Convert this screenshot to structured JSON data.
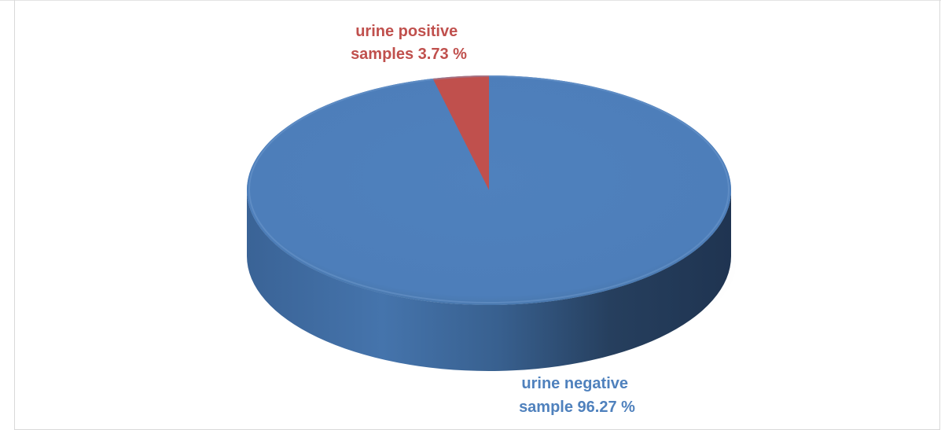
{
  "chart_data": {
    "type": "pie",
    "title": "",
    "categories": [
      "urine positive samples",
      "urine negative sample"
    ],
    "values": [
      3.73,
      96.27
    ],
    "unit": "%",
    "legend": "none",
    "style": "3d",
    "colors": [
      "#C0504D",
      "#4F81BD"
    ],
    "data_labels": [
      {
        "line1": "urine positive",
        "line2": "samples 3.73 %"
      },
      {
        "line1": "urine negative",
        "line2": "sample 96.27 %"
      }
    ]
  }
}
